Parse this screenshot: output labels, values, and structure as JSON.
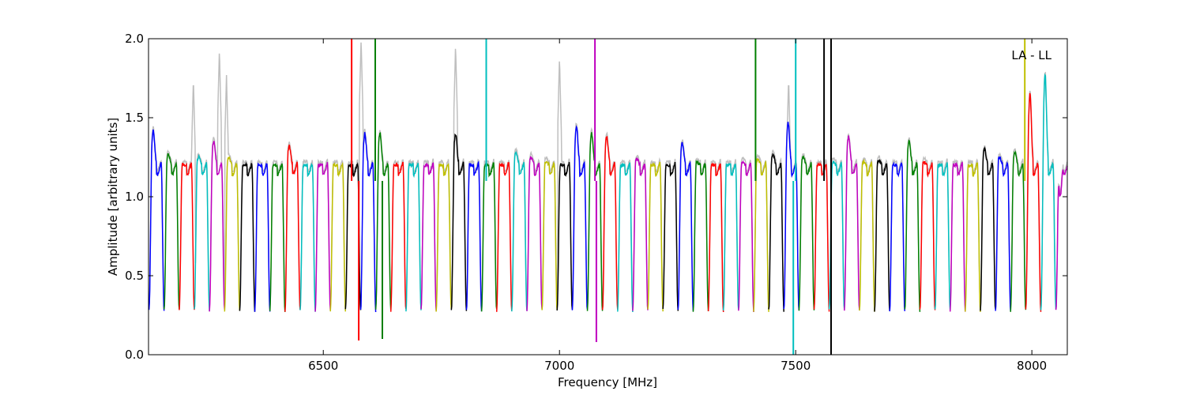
{
  "chart_data": {
    "type": "line",
    "title": "",
    "xlabel": "Frequency [MHz]",
    "ylabel": "Amplitude [arbitrary units]",
    "xlim": [
      6130,
      8075
    ],
    "ylim": [
      0.0,
      2.0
    ],
    "x_ticks": [
      6500,
      7000,
      7500,
      8000
    ],
    "x_tick_labels": [
      "6500",
      "7000",
      "7500",
      "8000"
    ],
    "y_ticks": [
      0.0,
      0.5,
      1.0,
      1.5,
      2.0
    ],
    "y_tick_labels": [
      "0.0",
      "0.5",
      "1.0",
      "1.5",
      "2.0"
    ],
    "grid": false,
    "annotation": "LA - LL",
    "annotation_position": "top-right",
    "background_series_color": "#bfbfbf",
    "color_cycle": [
      "#0000ff",
      "#008000",
      "#ff0000",
      "#00bfbf",
      "#bf00bf",
      "#bfbf00",
      "#000000"
    ],
    "channel_width_mhz": 32,
    "channel_starts_mhz": [
      6131,
      6163,
      6195,
      6227,
      6259,
      6291,
      6323,
      6355,
      6387,
      6419,
      6451,
      6483,
      6515,
      6547,
      6579,
      6611,
      6643,
      6675,
      6707,
      6739,
      6771,
      6803,
      6835,
      6867,
      6899,
      6931,
      6963,
      6995,
      7027,
      7059,
      7091,
      7123,
      7155,
      7187,
      7219,
      7251,
      7283,
      7315,
      7347,
      7379,
      7411,
      7443,
      7475,
      7507,
      7539,
      7571,
      7603,
      7635,
      7667,
      7699,
      7731,
      7763,
      7795,
      7827,
      7859,
      7891,
      7923,
      7955,
      7987,
      8019,
      8051
    ],
    "channel_plateau_levels": [
      1.42,
      1.27,
      1.2,
      1.25,
      1.35,
      1.25,
      1.2,
      1.2,
      1.2,
      1.32,
      1.2,
      1.2,
      1.2,
      1.2,
      1.4,
      1.4,
      1.2,
      1.2,
      1.2,
      1.2,
      1.4,
      1.2,
      1.2,
      1.2,
      1.28,
      1.25,
      1.22,
      1.2,
      1.45,
      1.4,
      1.38,
      1.2,
      1.24,
      1.2,
      1.2,
      1.34,
      1.22,
      1.2,
      1.2,
      1.22,
      1.24,
      1.27,
      1.47,
      1.25,
      1.2,
      1.22,
      1.38,
      1.22,
      1.23,
      1.2,
      1.35,
      1.22,
      1.2,
      1.2,
      1.2,
      1.3,
      1.25,
      1.28,
      1.65,
      1.77,
      1.0
    ],
    "channel_minimum_level": 0.28,
    "spikes": [
      {
        "x": 6560,
        "y": 2.0,
        "series_color": "#ff0000"
      },
      {
        "x": 6575,
        "y": 0.09,
        "series_color": "#ff0000"
      },
      {
        "x": 6610,
        "y": 2.0,
        "series_color": "#008000"
      },
      {
        "x": 6625,
        "y": 0.1,
        "series_color": "#008000"
      },
      {
        "x": 6845,
        "y": 2.0,
        "series_color": "#00bfbf"
      },
      {
        "x": 7075,
        "y": 2.0,
        "series_color": "#bf00bf"
      },
      {
        "x": 7078,
        "y": 0.08,
        "series_color": "#bf00bf"
      },
      {
        "x": 7415,
        "y": 2.0,
        "series_color": "#008000"
      },
      {
        "x": 7500,
        "y": 2.0,
        "series_color": "#00bfbf"
      },
      {
        "x": 7495,
        "y": 0.0,
        "series_color": "#00bfbf"
      },
      {
        "x": 7560,
        "y": 2.0,
        "series_color": "#000000"
      },
      {
        "x": 7575,
        "y": 2.0,
        "series_color": "#000000"
      },
      {
        "x": 7575,
        "y": 0.0,
        "series_color": "#000000"
      },
      {
        "x": 7985,
        "y": 2.0,
        "series_color": "#bfbf00"
      }
    ],
    "gray_peaks": [
      {
        "x": 6225,
        "y": 1.75
      },
      {
        "x": 6280,
        "y": 1.93
      },
      {
        "x": 6295,
        "y": 1.77
      },
      {
        "x": 6580,
        "y": 2.0
      },
      {
        "x": 6780,
        "y": 1.96
      },
      {
        "x": 7000,
        "y": 1.88
      },
      {
        "x": 7485,
        "y": 1.75
      }
    ]
  }
}
